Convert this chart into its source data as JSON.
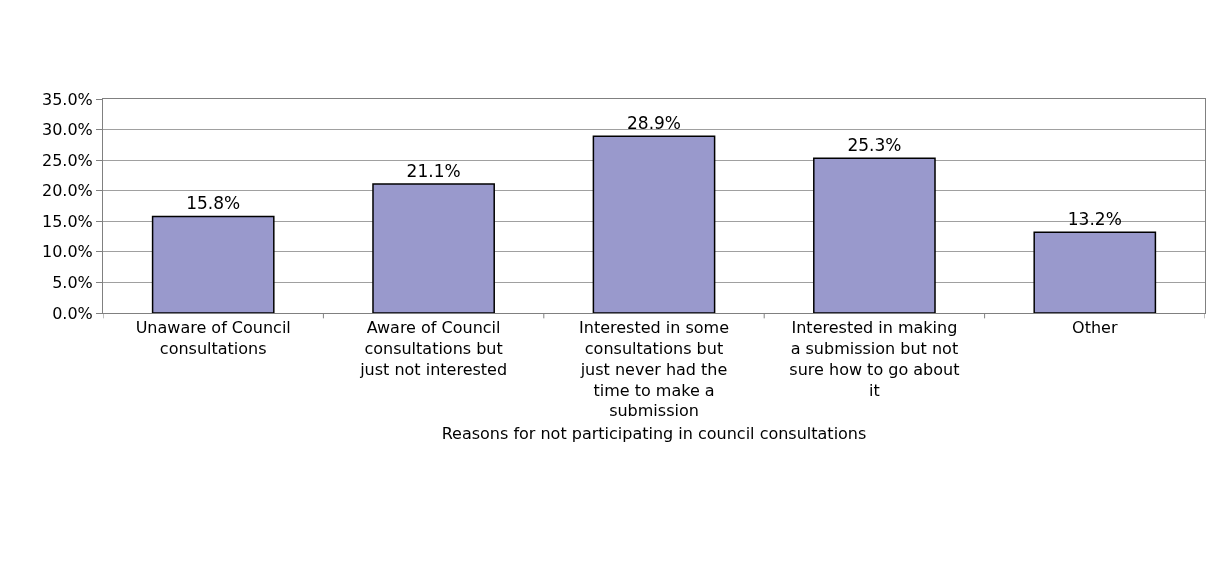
{
  "chart_data": {
    "type": "bar",
    "xlabel": "Reasons for not participating in council consultations",
    "categories": [
      "Unaware of Council consultations",
      "Aware of Council consultations but just not interested",
      "Interested in some consultations but just never had the time to make a submission",
      "Interested in making a submission but not sure how to go about it",
      "Other"
    ],
    "values": [
      15.8,
      21.1,
      28.9,
      25.3,
      13.2
    ],
    "value_labels": [
      "15.8%",
      "21.1%",
      "28.9%",
      "25.3%",
      "13.2%"
    ],
    "color": "#9999cc",
    "ylim": [
      0,
      35
    ],
    "yticks": [
      {
        "value": 0,
        "label": "0.0%"
      },
      {
        "value": 5,
        "label": "5.0%"
      },
      {
        "value": 10,
        "label": "10.0%"
      },
      {
        "value": 15,
        "label": "15.0%"
      },
      {
        "value": 20,
        "label": "20.0%"
      },
      {
        "value": 25,
        "label": "25.0%"
      },
      {
        "value": 30,
        "label": "30.0%"
      },
      {
        "value": 35,
        "label": "35.0%"
      }
    ],
    "grid": true
  }
}
